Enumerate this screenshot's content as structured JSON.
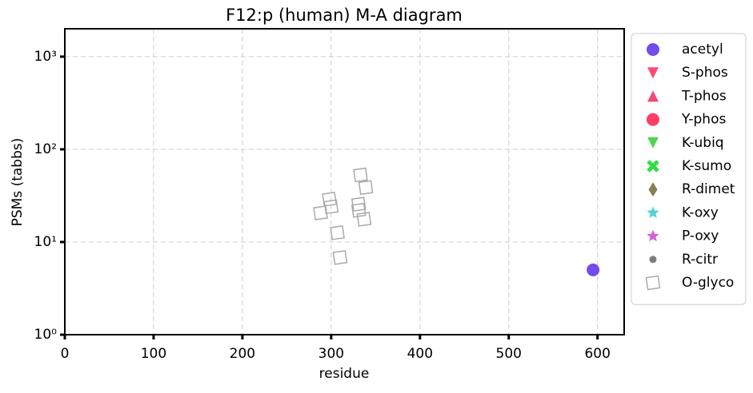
{
  "chart_data": {
    "type": "scatter",
    "title": "F12:p (human) M-A diagram",
    "x_label": "residue",
    "y_label": "PSMs (tabbs)",
    "xlim": [
      0,
      630
    ],
    "xticks": [
      0,
      100,
      200,
      300,
      400,
      500,
      600
    ],
    "ylim": [
      1,
      2000
    ],
    "yscale": "log",
    "yticks": [
      {
        "value": 1,
        "label": "10⁰"
      },
      {
        "value": 10,
        "label": "10¹"
      },
      {
        "value": 100,
        "label": "10²"
      },
      {
        "value": 1000,
        "label": "10³"
      }
    ],
    "grid": true,
    "legend": "outside right",
    "series": [
      {
        "name": "acetyl",
        "color": "#5a2ee6",
        "marker": "circle",
        "x": [
          595
        ],
        "values": [
          5
        ]
      },
      {
        "name": "S-phos",
        "color": "#ff2a5a",
        "marker": "triangle-down",
        "x": [],
        "values": []
      },
      {
        "name": "T-phos",
        "color": "#ee2a5e",
        "marker": "triangle-up",
        "x": [],
        "values": []
      },
      {
        "name": "Y-phos",
        "color": "#ff1a4a",
        "marker": "circle",
        "x": [],
        "values": []
      },
      {
        "name": "K-ubiq",
        "color": "#33cc33",
        "marker": "triangle-down",
        "x": [],
        "values": []
      },
      {
        "name": "K-sumo",
        "color": "#33dd44",
        "marker": "x",
        "x": [],
        "values": []
      },
      {
        "name": "R-dimet",
        "color": "#6b6b35",
        "marker": "diamond",
        "x": [],
        "values": []
      },
      {
        "name": "K-oxy",
        "color": "#33cccc",
        "marker": "star",
        "x": [],
        "values": []
      },
      {
        "name": "P-oxy",
        "color": "#cc44cc",
        "marker": "star",
        "x": [],
        "values": []
      },
      {
        "name": "R-citr",
        "color": "#666666",
        "marker": "dot",
        "x": [],
        "values": []
      },
      {
        "name": "O-glyco",
        "color": "#aaaaaa",
        "marker": "open-square",
        "x": [
          333,
          339,
          298,
          300,
          331,
          331,
          288,
          337,
          307,
          310
        ],
        "values": [
          53,
          38.7,
          29,
          24,
          25.6,
          22,
          20.6,
          17.6,
          12.6,
          6.8
        ]
      }
    ]
  }
}
